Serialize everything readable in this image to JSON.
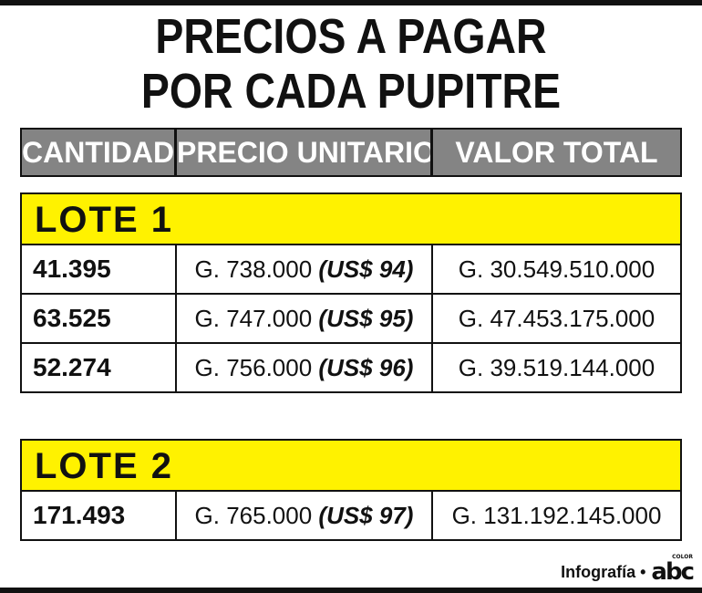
{
  "title": {
    "line1": "PRECIOS A PAGAR",
    "line2": "POR CADA PUPITRE"
  },
  "table": {
    "headers": [
      "CANTIDAD",
      "PRECIO UNITARIO",
      "VALOR TOTAL"
    ],
    "lotes": [
      {
        "label": "LOTE 1",
        "rows": [
          {
            "cantidad": "41.395",
            "precio": "G. 738.000",
            "usd": "(US$ 94)",
            "total": "G. 30.549.510.000"
          },
          {
            "cantidad": "63.525",
            "precio": "G. 747.000",
            "usd": "(US$ 95)",
            "total": "G. 47.453.175.000"
          },
          {
            "cantidad": "52.274",
            "precio": "G. 756.000",
            "usd": "(US$ 96)",
            "total": "G. 39.519.144.000"
          }
        ]
      },
      {
        "label": "LOTE 2",
        "rows": [
          {
            "cantidad": "171.493",
            "precio": "G. 765.000",
            "usd": "(US$ 97)",
            "total": "G. 131.192.145.000"
          }
        ]
      }
    ]
  },
  "credit": {
    "text": "Infografía •",
    "logo": "abc",
    "logo_sub": "COLOR"
  },
  "colors": {
    "lote_header": "#fff200",
    "column_header": "#848484",
    "text": "#111111"
  }
}
